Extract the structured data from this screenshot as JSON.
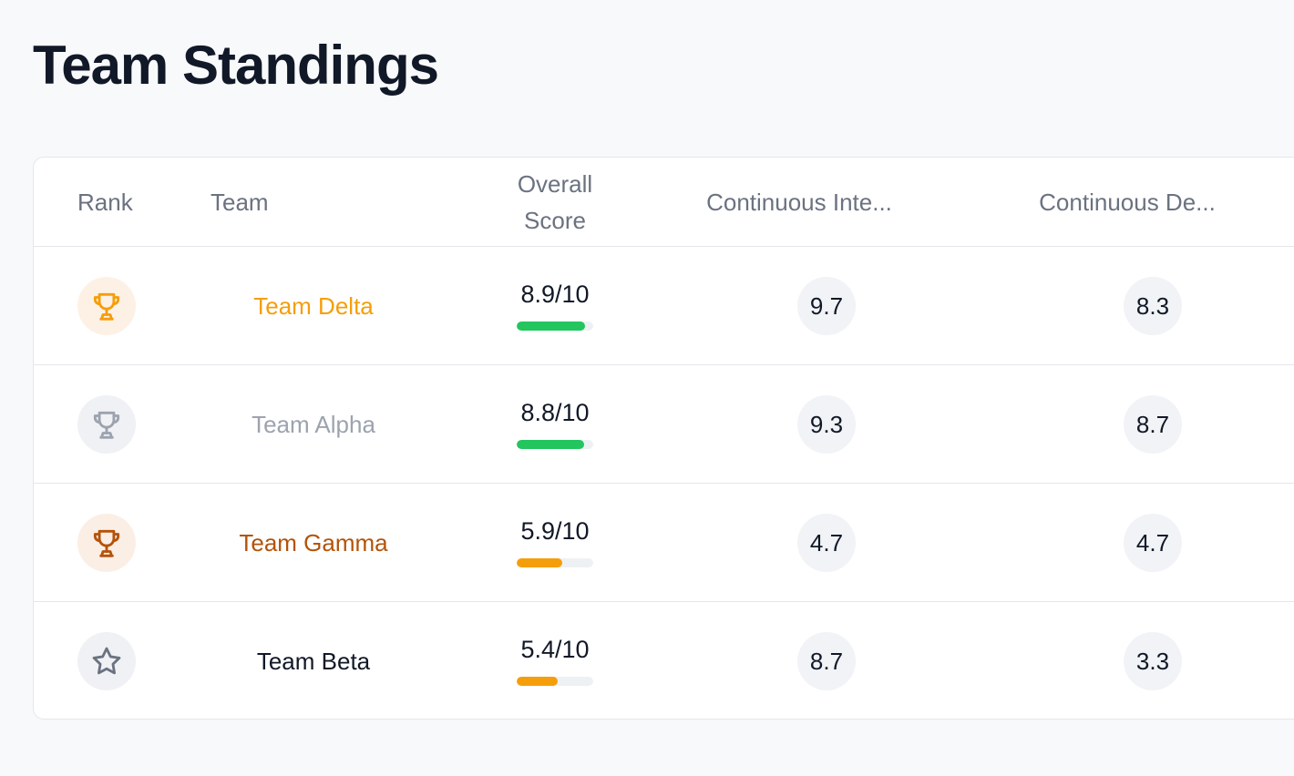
{
  "page": {
    "title": "Team Standings"
  },
  "table": {
    "headers": {
      "rank": "Rank",
      "team": "Team",
      "overall_line1": "Overall",
      "overall_line2": "Score",
      "ci": "Continuous Inte...",
      "cd": "Continuous De..."
    },
    "rows": [
      {
        "rank_icon": "trophy-icon",
        "rank_color": "#f59e0b",
        "rank_bg": "#fdf1e6",
        "team": "Team Delta",
        "team_color": "#f59e0b",
        "score": "8.9/10",
        "score_value": 8.9,
        "bar_color": "#22c55e",
        "ci": "9.7",
        "cd": "8.3"
      },
      {
        "rank_icon": "trophy-icon",
        "rank_color": "#9ca3af",
        "rank_bg": "#eff1f4",
        "team": "Team Alpha",
        "team_color": "#9ca3af",
        "score": "8.8/10",
        "score_value": 8.8,
        "bar_color": "#22c55e",
        "ci": "9.3",
        "cd": "8.7"
      },
      {
        "rank_icon": "trophy-icon",
        "rank_color": "#b45309",
        "rank_bg": "#fbeee5",
        "team": "Team Gamma",
        "team_color": "#b45309",
        "score": "5.9/10",
        "score_value": 5.9,
        "bar_color": "#f59e0b",
        "ci": "4.7",
        "cd": "4.7"
      },
      {
        "rank_icon": "star-icon",
        "rank_color": "#6b7280",
        "rank_bg": "#eff1f4",
        "team": "Team Beta",
        "team_color": "#111827",
        "score": "5.4/10",
        "score_value": 5.4,
        "bar_color": "#f59e0b",
        "ci": "8.7",
        "cd": "3.3"
      }
    ]
  }
}
